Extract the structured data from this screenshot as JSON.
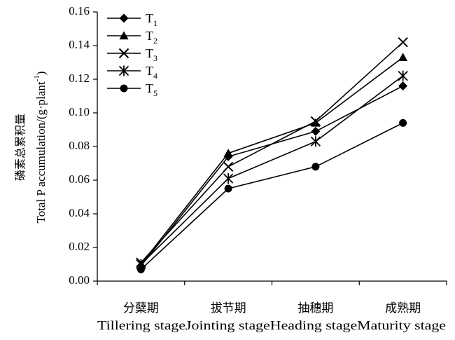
{
  "chart_data": {
    "type": "line",
    "categories_cn": [
      "分蘖期",
      "拔节期",
      "抽穗期",
      "成熟期"
    ],
    "categories_en": [
      "Tillering stage",
      "Jointing stage",
      "Heading stage",
      "Maturity stage"
    ],
    "ylabel_cn": "磷素总累积量",
    "ylabel_en": "Total P accumulation/(g·plant",
    "ylabel_sup": "-1",
    "ylabel_end": ")",
    "ylim": [
      0,
      0.16
    ],
    "yticks": [
      "0.00",
      "0.02",
      "0.04",
      "0.06",
      "0.08",
      "0.10",
      "0.12",
      "0.14",
      "0.16"
    ],
    "grid": false,
    "legend_position": "top-left",
    "series": [
      {
        "name": "T",
        "sub": "1",
        "marker": "diamond",
        "values": [
          0.009,
          0.074,
          0.089,
          0.116
        ]
      },
      {
        "name": "T",
        "sub": "2",
        "marker": "triangle",
        "values": [
          0.01,
          0.076,
          0.094,
          0.133
        ]
      },
      {
        "name": "T",
        "sub": "3",
        "marker": "x",
        "values": [
          0.011,
          0.068,
          0.095,
          0.142
        ]
      },
      {
        "name": "T",
        "sub": "4",
        "marker": "asterisk",
        "values": [
          0.01,
          0.061,
          0.083,
          0.122
        ]
      },
      {
        "name": "T",
        "sub": "5",
        "marker": "circle",
        "values": [
          0.007,
          0.055,
          0.068,
          0.094
        ]
      }
    ]
  }
}
